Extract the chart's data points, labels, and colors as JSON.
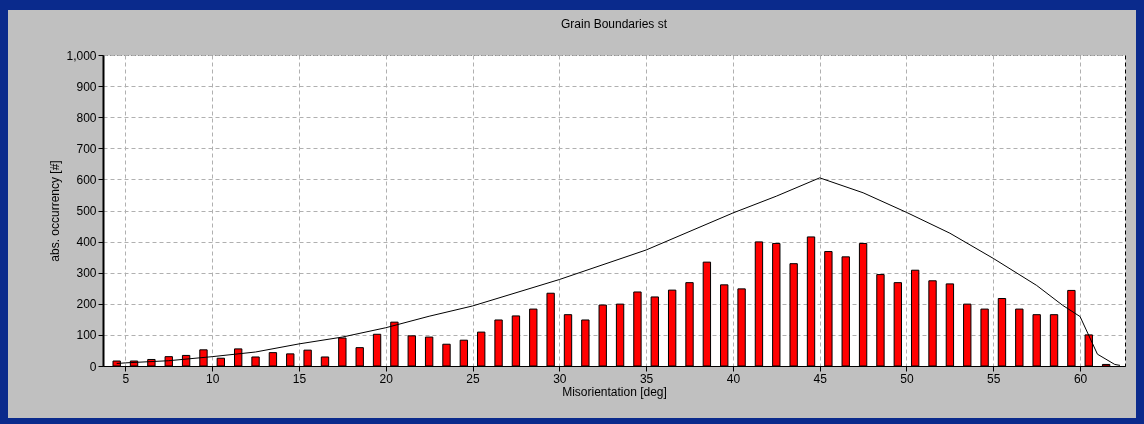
{
  "chart_data": {
    "type": "bar",
    "title": "Grain Boundaries st",
    "xlabel": "Misorientation [deg]",
    "ylabel": "abs. occurrency [#]",
    "x": [
      4.5,
      5.5,
      6.5,
      7.5,
      8.5,
      9.5,
      10.5,
      11.5,
      12.5,
      13.5,
      14.5,
      15.5,
      16.5,
      17.5,
      18.5,
      19.5,
      20.5,
      21.5,
      22.5,
      23.5,
      24.5,
      25.5,
      26.5,
      27.5,
      28.5,
      29.5,
      30.5,
      31.5,
      32.5,
      33.5,
      34.5,
      35.5,
      36.5,
      37.5,
      38.5,
      39.5,
      40.5,
      41.5,
      42.5,
      43.5,
      44.5,
      45.5,
      46.5,
      47.5,
      48.5,
      49.5,
      50.5,
      51.5,
      52.5,
      53.5,
      54.5,
      55.5,
      56.5,
      57.5,
      58.5,
      59.5,
      60.5,
      61.5
    ],
    "series": [
      {
        "color": "#ff0000",
        "values": [
          16,
          16,
          21,
          30,
          34,
          52,
          25,
          55,
          29,
          43,
          39,
          51,
          29,
          90,
          59,
          102,
          141,
          97,
          93,
          70,
          83,
          109,
          148,
          161,
          183,
          234,
          165,
          148,
          196,
          199,
          238,
          222,
          244,
          268,
          334,
          261,
          248,
          399,
          394,
          329,
          415,
          368,
          351,
          394,
          294,
          268,
          308,
          274,
          264,
          199,
          183,
          217,
          183,
          165,
          165,
          243,
          100,
          5
        ]
      },
      {
        "type": "line",
        "color": "#000000",
        "x": [
          4.5,
          5,
          7.5,
          10,
          12.5,
          15,
          17.5,
          20,
          22.5,
          25,
          30,
          35,
          40,
          42.5,
          45,
          47.5,
          50,
          52.5,
          55,
          57.5,
          59,
          60,
          61,
          62,
          62.3
        ],
        "values": [
          8,
          10,
          17,
          30,
          45,
          71,
          93,
          123,
          160,
          193,
          278,
          373,
          492,
          546,
          605,
          557,
          494,
          427,
          346,
          259,
          195,
          159,
          38,
          5,
          2
        ]
      }
    ],
    "xlim": [
      4,
      62.3
    ],
    "xticks": [
      5,
      10,
      15,
      20,
      25,
      30,
      35,
      40,
      45,
      50,
      55,
      60
    ],
    "ylim": [
      0,
      1000
    ],
    "yticks": [
      0,
      100,
      200,
      300,
      400,
      500,
      600,
      700,
      800,
      900,
      {
        "value": 1000,
        "label": "1,000"
      }
    ],
    "grid": true
  }
}
